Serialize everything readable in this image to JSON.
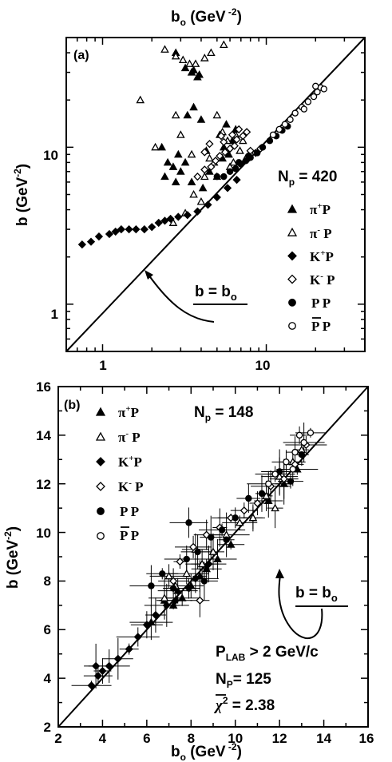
{
  "chart_data": [
    {
      "panel": "(a)",
      "type": "scatter",
      "xscale": "log",
      "yscale": "log",
      "xlabel_top": "bo (GeV-2)",
      "ylabel": "b (GeV-2)",
      "xticks": [
        "1",
        "10"
      ],
      "yticks": [
        "1",
        "10"
      ],
      "xlim": [
        0.6,
        40
      ],
      "ylim": [
        0.5,
        50
      ],
      "annotation": "b = bo",
      "np_label": "Np = 420",
      "legend": [
        {
          "label": "π+P",
          "marker": "triangle-filled"
        },
        {
          "label": "π-P",
          "marker": "triangle-open"
        },
        {
          "label": "K+P",
          "marker": "diamond-filled"
        },
        {
          "label": "K-P",
          "marker": "diamond-open"
        },
        {
          "label": "P P",
          "marker": "circle-filled"
        },
        {
          "label": "P̄ P",
          "marker": "circle-open"
        }
      ],
      "series": [
        {
          "name": "π+P",
          "marker": "triangle-filled",
          "points": [
            [
              3.2,
              32
            ],
            [
              3.5,
              30
            ],
            [
              3.8,
              28
            ],
            [
              3.6,
              31
            ],
            [
              3.9,
              29
            ],
            [
              2.8,
              40
            ],
            [
              3.3,
              16
            ],
            [
              3.6,
              18
            ],
            [
              4.0,
              15
            ],
            [
              2.3,
              10
            ],
            [
              2.5,
              8
            ],
            [
              2.7,
              7.5
            ],
            [
              3.0,
              7
            ],
            [
              3.2,
              8
            ],
            [
              2.9,
              9
            ],
            [
              3.5,
              6
            ],
            [
              4.1,
              5.5
            ],
            [
              4.5,
              7
            ],
            [
              2.4,
              6.5
            ],
            [
              2.8,
              6
            ],
            [
              5.2,
              12
            ],
            [
              5.5,
              10
            ],
            [
              6.2,
              11
            ],
            [
              5.9,
              9
            ],
            [
              4.3,
              9.5
            ],
            [
              5.7,
              14
            ],
            [
              6.5,
              13
            ],
            [
              5.4,
              8.5
            ]
          ]
        },
        {
          "name": "π-P",
          "marker": "triangle-open",
          "points": [
            [
              2.4,
              42
            ],
            [
              2.8,
              38
            ],
            [
              3.1,
              36
            ],
            [
              3.4,
              34
            ],
            [
              3.7,
              34
            ],
            [
              4.2,
              37
            ],
            [
              4.6,
              40
            ],
            [
              5.5,
              45
            ],
            [
              1.7,
              20
            ],
            [
              2.1,
              10
            ],
            [
              2.8,
              16
            ],
            [
              3.0,
              12
            ],
            [
              3.5,
              9
            ],
            [
              4.5,
              8.5
            ],
            [
              4.8,
              8
            ],
            [
              5.0,
              16
            ],
            [
              5.4,
              12.5
            ],
            [
              5.8,
              11
            ],
            [
              6.5,
              12
            ],
            [
              6.9,
              9.5
            ],
            [
              7.2,
              11
            ],
            [
              6.0,
              7.5
            ],
            [
              5.0,
              6.5
            ],
            [
              3.6,
              5
            ],
            [
              4.2,
              6.5
            ],
            [
              2.7,
              3.3
            ],
            [
              3.2,
              3.8
            ],
            [
              4.0,
              4.5
            ],
            [
              6.3,
              8
            ],
            [
              7.5,
              8.5
            ]
          ]
        },
        {
          "name": "K+P",
          "marker": "diamond-filled",
          "points": [
            [
              0.75,
              2.4
            ],
            [
              0.85,
              2.5
            ],
            [
              0.95,
              2.7
            ],
            [
              1.1,
              2.8
            ],
            [
              1.2,
              2.9
            ],
            [
              1.3,
              3.0
            ],
            [
              1.45,
              3.0
            ],
            [
              1.6,
              3.0
            ],
            [
              1.8,
              3.0
            ],
            [
              2.0,
              3.1
            ],
            [
              2.2,
              3.3
            ],
            [
              2.4,
              3.4
            ],
            [
              2.6,
              3.5
            ],
            [
              2.9,
              3.6
            ],
            [
              3.3,
              3.7
            ],
            [
              3.8,
              3.9
            ],
            [
              4.4,
              4.3
            ],
            [
              5.0,
              4.8
            ],
            [
              5.8,
              5.5
            ],
            [
              6.6,
              6.2
            ]
          ]
        },
        {
          "name": "K-P",
          "marker": "diamond-open",
          "points": [
            [
              3.8,
              6.5
            ],
            [
              4.2,
              7.2
            ],
            [
              4.6,
              7.5
            ],
            [
              4.9,
              8.2
            ],
            [
              5.2,
              8.8
            ],
            [
              5.6,
              9.3
            ],
            [
              6.0,
              9.8
            ],
            [
              6.4,
              10.2
            ],
            [
              5.5,
              10.8
            ],
            [
              6.2,
              12
            ],
            [
              6.8,
              13
            ],
            [
              7.2,
              11.8
            ],
            [
              7.6,
              12.5
            ],
            [
              8.0,
              9.5
            ],
            [
              8.6,
              9.2
            ],
            [
              9.2,
              9.8
            ],
            [
              4.5,
              10.5
            ],
            [
              4.2,
              9.3
            ],
            [
              5.3,
              11.8
            ],
            [
              6.6,
              11.2
            ]
          ]
        },
        {
          "name": "P P",
          "marker": "circle-filled",
          "points": [
            [
              5.0,
              6.5
            ],
            [
              5.5,
              6.5
            ],
            [
              6.0,
              7.0
            ],
            [
              6.5,
              7.3
            ],
            [
              7.0,
              7.8
            ],
            [
              7.5,
              8.2
            ],
            [
              8.0,
              8.6
            ],
            [
              8.8,
              9.2
            ],
            [
              9.5,
              10.0
            ],
            [
              10.5,
              11.0
            ],
            [
              11.5,
              11.8
            ],
            [
              12.5,
              12.8
            ],
            [
              13.5,
              13.6
            ],
            [
              6.8,
              8.0
            ],
            [
              7.8,
              8.8
            ]
          ]
        },
        {
          "name": "P̄ P",
          "marker": "circle-open",
          "points": [
            [
              11.0,
              12.0
            ],
            [
              12.0,
              13.0
            ],
            [
              13.0,
              14.0
            ],
            [
              14.0,
              15.0
            ],
            [
              15.0,
              16.5
            ],
            [
              16.5,
              18.0
            ],
            [
              18.0,
              19.5
            ],
            [
              19.5,
              21.0
            ],
            [
              20.5,
              22.5
            ],
            [
              21.5,
              24.0
            ],
            [
              20.0,
              24.5
            ],
            [
              22.5,
              23.5
            ],
            [
              17.0,
              17.5
            ]
          ]
        }
      ]
    },
    {
      "panel": "(b)",
      "type": "scatter",
      "xlabel": "bo (GeV-2)",
      "ylabel": "b (GeV-2)",
      "xlim": [
        2,
        16
      ],
      "ylim": [
        2,
        16
      ],
      "xticks": [
        "2",
        "4",
        "6",
        "8",
        "10",
        "12",
        "14",
        "16"
      ],
      "yticks": [
        "2",
        "4",
        "6",
        "8",
        "10",
        "12",
        "14",
        "16"
      ],
      "annotation": "b = bo",
      "np_label": "Np = 148",
      "cut_text": "PLAB > 2 GeV/c",
      "np2_label": "Np= 125",
      "chi2_label": "χ2 = 2.38",
      "legend": [
        {
          "label": "π+P",
          "marker": "triangle-filled"
        },
        {
          "label": "π-P",
          "marker": "triangle-open"
        },
        {
          "label": "K+P",
          "marker": "diamond-filled"
        },
        {
          "label": "K-P",
          "marker": "diamond-open"
        },
        {
          "label": "P P",
          "marker": "circle-filled"
        },
        {
          "label": "P̄ P",
          "marker": "circle-open"
        }
      ],
      "series": [
        {
          "name": "π+P",
          "marker": "triangle-filled",
          "points": [
            [
              7.2,
              7.0
            ],
            [
              7.6,
              7.3
            ],
            [
              8.0,
              7.8
            ],
            [
              8.4,
              8.2
            ],
            [
              9.2,
              8.9
            ],
            [
              9.8,
              9.5
            ],
            [
              6.8,
              7.2
            ],
            [
              7.4,
              7.6
            ],
            [
              11.5,
              11.3
            ],
            [
              12.2,
              12.0
            ],
            [
              12.8,
              12.6
            ],
            [
              8.7,
              8.5
            ],
            [
              10.8,
              10.6
            ],
            [
              6.2,
              6.3
            ]
          ]
        },
        {
          "name": "π-P",
          "marker": "triangle-open",
          "points": [
            [
              6.8,
              7.3
            ],
            [
              7.3,
              7.8
            ],
            [
              7.8,
              8.3
            ],
            [
              8.5,
              8.7
            ],
            [
              9.0,
              9.2
            ],
            [
              9.6,
              9.9
            ],
            [
              10.2,
              10.4
            ],
            [
              10.8,
              10.6
            ],
            [
              11.4,
              11.5
            ],
            [
              12.0,
              12.3
            ],
            [
              12.6,
              12.9
            ],
            [
              13.0,
              13.4
            ],
            [
              7.0,
              8.2
            ],
            [
              8.2,
              9.3
            ],
            [
              11.8,
              11.0
            ]
          ]
        },
        {
          "name": "K+P",
          "marker": "diamond-filled",
          "points": [
            [
              3.5,
              3.7
            ],
            [
              3.8,
              4.1
            ],
            [
              4.0,
              4.3
            ],
            [
              4.3,
              4.5
            ],
            [
              4.7,
              4.8
            ],
            [
              5.2,
              5.2
            ],
            [
              5.6,
              5.7
            ],
            [
              6.0,
              6.2
            ],
            [
              6.4,
              6.6
            ],
            [
              6.9,
              7.0
            ],
            [
              7.3,
              7.2
            ],
            [
              7.9,
              7.7
            ],
            [
              8.2,
              8.1
            ],
            [
              8.8,
              8.7
            ],
            [
              3.7,
              4.5
            ]
          ]
        },
        {
          "name": "K-P",
          "marker": "diamond-open",
          "points": [
            [
              7.5,
              8.8
            ],
            [
              8.1,
              9.4
            ],
            [
              8.7,
              9.9
            ],
            [
              9.3,
              10.2
            ],
            [
              9.8,
              10.6
            ],
            [
              10.4,
              10.9
            ],
            [
              11.0,
              11.2
            ],
            [
              11.6,
              11.9
            ],
            [
              12.2,
              12.2
            ],
            [
              12.7,
              12.8
            ],
            [
              13.2,
              13.6
            ],
            [
              7.2,
              8.0
            ],
            [
              8.4,
              7.2
            ]
          ]
        },
        {
          "name": "P P",
          "marker": "circle-filled",
          "points": [
            [
              6.2,
              7.8
            ],
            [
              6.7,
              8.3
            ],
            [
              7.2,
              7.7
            ],
            [
              7.8,
              8.9
            ],
            [
              8.3,
              9.2
            ],
            [
              8.9,
              9.8
            ],
            [
              9.4,
              10.1
            ],
            [
              10.0,
              10.6
            ],
            [
              10.6,
              11.4
            ],
            [
              11.2,
              11.6
            ],
            [
              12.0,
              12.5
            ],
            [
              12.5,
              12.1
            ],
            [
              13.0,
              13.2
            ],
            [
              7.9,
              10.4
            ],
            [
              8.6,
              8.0
            ],
            [
              9.6,
              9.7
            ]
          ]
        },
        {
          "name": "P̄ P",
          "marker": "circle-open",
          "points": [
            [
              11.8,
              12.4
            ],
            [
              12.3,
              12.9
            ],
            [
              12.7,
              13.3
            ],
            [
              13.1,
              13.7
            ],
            [
              13.4,
              14.1
            ],
            [
              12.9,
              14.0
            ],
            [
              11.5,
              12.0
            ],
            [
              12.6,
              12.6
            ]
          ]
        }
      ]
    }
  ]
}
